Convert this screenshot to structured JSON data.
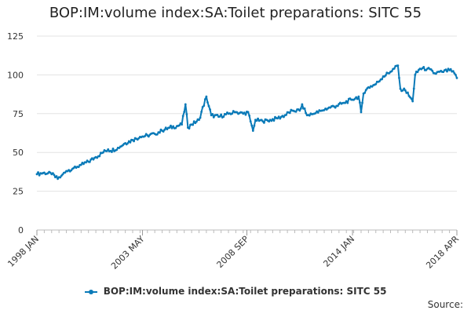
{
  "chart_data": {
    "type": "line",
    "title": "BOP:IM:volume index:SA:Toilet preparations: SITC 55",
    "xlabel": "",
    "ylabel": "",
    "ylim": [
      0,
      125
    ],
    "yticks": [
      0,
      25,
      50,
      75,
      100,
      125
    ],
    "x_start": "1998 JAN",
    "x_end": "2018 APR",
    "xticks": [
      "1998 JAN",
      "2003 MAY",
      "2008 SEP",
      "2014 JAN",
      "2018 APR"
    ],
    "series": [
      {
        "name": "BOP:IM:volume index:SA:Toilet preparations: SITC 55",
        "color": "#0a7ab8",
        "frequency": "monthly",
        "anchors": [
          [
            0,
            36
          ],
          [
            6,
            37
          ],
          [
            12,
            36
          ],
          [
            17,
            33
          ],
          [
            20,
            35
          ],
          [
            24,
            38
          ],
          [
            30,
            40
          ],
          [
            36,
            42
          ],
          [
            42,
            44
          ],
          [
            48,
            47
          ],
          [
            54,
            50
          ],
          [
            58,
            52
          ],
          [
            60,
            51
          ],
          [
            66,
            53
          ],
          [
            72,
            56
          ],
          [
            78,
            58
          ],
          [
            84,
            60
          ],
          [
            90,
            61
          ],
          [
            96,
            62
          ],
          [
            102,
            64
          ],
          [
            108,
            66
          ],
          [
            114,
            67
          ],
          [
            118,
            68
          ],
          [
            121,
            81
          ],
          [
            123,
            66
          ],
          [
            126,
            68
          ],
          [
            132,
            71
          ],
          [
            138,
            86
          ],
          [
            142,
            74
          ],
          [
            148,
            73
          ],
          [
            156,
            75
          ],
          [
            162,
            76
          ],
          [
            168,
            75
          ],
          [
            172,
            76
          ],
          [
            174,
            70
          ],
          [
            176,
            64
          ],
          [
            178,
            71
          ],
          [
            184,
            70
          ],
          [
            190,
            71
          ],
          [
            196,
            72
          ],
          [
            202,
            74
          ],
          [
            208,
            77
          ],
          [
            214,
            77
          ],
          [
            216,
            81
          ],
          [
            220,
            74
          ],
          [
            226,
            75
          ],
          [
            232,
            77
          ],
          [
            238,
            79
          ],
          [
            244,
            80
          ],
          [
            250,
            82
          ],
          [
            256,
            84
          ],
          [
            262,
            86
          ],
          [
            264,
            76
          ],
          [
            266,
            88
          ],
          [
            270,
            92
          ],
          [
            276,
            94
          ],
          [
            282,
            99
          ],
          [
            288,
            102
          ],
          [
            294,
            106
          ],
          [
            296,
            91
          ],
          [
            300,
            90
          ],
          [
            306,
            83
          ],
          [
            308,
            100
          ],
          [
            312,
            104
          ],
          [
            318,
            104
          ],
          [
            324,
            101
          ],
          [
            330,
            102
          ],
          [
            336,
            103
          ],
          [
            340,
            101
          ],
          [
            342,
            98
          ]
        ]
      }
    ]
  },
  "legend": {
    "label": "BOP:IM:volume index:SA:Toilet preparations: SITC 55"
  },
  "source_label": "Source:"
}
